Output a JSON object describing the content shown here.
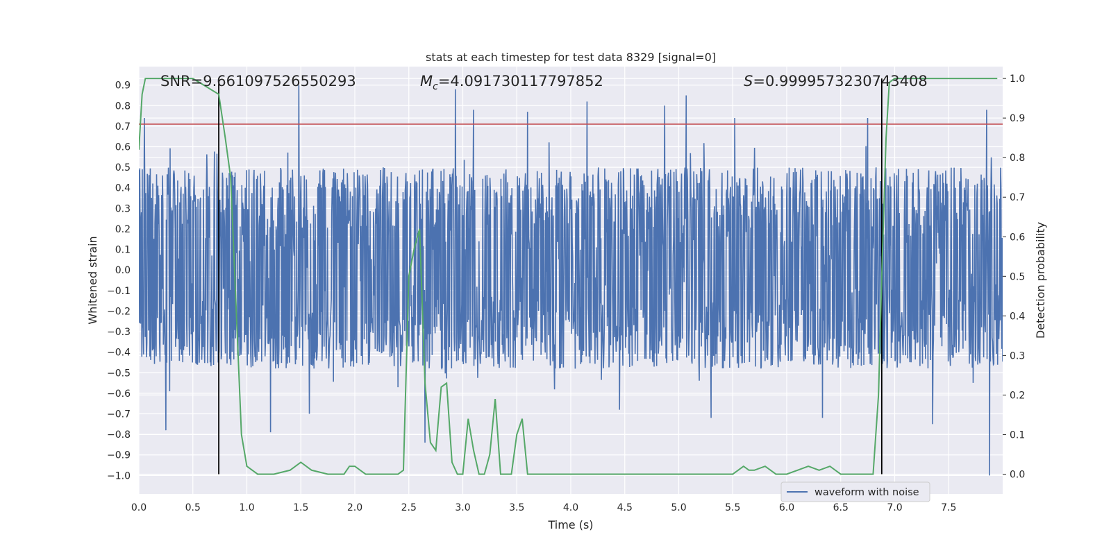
{
  "chart_data": {
    "type": "line",
    "title": "stats at each timestep for test data 8329 [signal=0]",
    "xlabel": "Time (s)",
    "ylabel_left": "Whitened strain",
    "ylabel_right": "Detection probability",
    "xlim": [
      0,
      8.0
    ],
    "ylim_left": [
      -1.09,
      0.99
    ],
    "ylim_right": [
      -0.05,
      1.03
    ],
    "x_ticks": [
      0.0,
      0.5,
      1.0,
      1.5,
      2.0,
      2.5,
      3.0,
      3.5,
      4.0,
      4.5,
      5.0,
      5.5,
      6.0,
      6.5,
      7.0,
      7.5
    ],
    "x_tick_labels": [
      "0.0",
      "0.5",
      "1.0",
      "1.5",
      "2.0",
      "2.5",
      "3.0",
      "3.5",
      "4.0",
      "4.5",
      "5.0",
      "5.5",
      "6.0",
      "6.5",
      "7.0",
      "7.5"
    ],
    "y_left_ticks": [
      0.9,
      0.8,
      0.7,
      0.6,
      0.5,
      0.4,
      0.3,
      0.2,
      0.1,
      0.0,
      -0.1,
      -0.2,
      -0.3,
      -0.4,
      -0.5,
      -0.6,
      -0.7,
      -0.8,
      -0.9,
      -1.0
    ],
    "y_left_tick_labels": [
      "0.9",
      "0.8",
      "0.7",
      "0.6",
      "0.5",
      "0.4",
      "0.3",
      "0.2",
      "0.1",
      "0.0",
      "−0.1",
      "−0.2",
      "−0.3",
      "−0.4",
      "−0.5",
      "−0.6",
      "−0.7",
      "−0.8",
      "−0.9",
      "−1.0"
    ],
    "y_right_ticks": [
      1.0,
      0.9,
      0.8,
      0.7,
      0.6,
      0.5,
      0.4,
      0.3,
      0.2,
      0.1,
      0.0
    ],
    "y_right_tick_labels": [
      "1.0",
      "0.9",
      "0.8",
      "0.7",
      "0.6",
      "0.5",
      "0.4",
      "0.3",
      "0.2",
      "0.1",
      "0.0"
    ],
    "grid": true,
    "annotations": {
      "snr": "SNR=9.661097526550293",
      "mc_symbol": "M",
      "mc_sub": "c",
      "mc_value": "=4.091730117797852",
      "s_symbol": "S",
      "s_value": "=0.9999573230743408"
    },
    "legend": {
      "placement": "lower-right",
      "entries": [
        "waveform with noise"
      ]
    },
    "threshold_line": {
      "y_left": 0.71,
      "color": "#c44e52"
    },
    "vertical_lines": [
      0.74,
      6.88
    ],
    "waveform": {
      "name": "waveform with noise",
      "color": "#4c72b0",
      "t_start": 0.0,
      "t_end": 8.0,
      "samples": 2048,
      "envelope_upper": 0.5,
      "envelope_lower": -0.48,
      "peaks": [
        {
          "t": 0.05,
          "v": 0.74
        },
        {
          "t": 1.48,
          "v": 0.9
        },
        {
          "t": 2.93,
          "v": 0.88
        },
        {
          "t": 3.1,
          "v": 0.78
        },
        {
          "t": 3.6,
          "v": 0.77
        },
        {
          "t": 4.15,
          "v": 0.82
        },
        {
          "t": 4.87,
          "v": 0.8
        },
        {
          "t": 5.07,
          "v": 0.85
        },
        {
          "t": 5.52,
          "v": 0.74
        },
        {
          "t": 6.75,
          "v": 0.74
        },
        {
          "t": 7.85,
          "v": 0.78
        },
        {
          "t": 0.25,
          "v": -0.78
        },
        {
          "t": 1.22,
          "v": -0.79
        },
        {
          "t": 1.58,
          "v": -0.7
        },
        {
          "t": 2.65,
          "v": -0.84
        },
        {
          "t": 4.45,
          "v": -0.68
        },
        {
          "t": 5.3,
          "v": -0.72
        },
        {
          "t": 6.33,
          "v": -0.72
        },
        {
          "t": 7.35,
          "v": -0.75
        },
        {
          "t": 7.88,
          "v": -1.0
        }
      ]
    },
    "probability": {
      "color": "#55a868",
      "x": [
        0.0,
        0.03,
        0.06,
        0.12,
        0.5,
        0.62,
        0.68,
        0.74,
        0.8,
        0.85,
        0.95,
        1.0,
        1.1,
        1.25,
        1.4,
        1.45,
        1.5,
        1.6,
        1.75,
        1.85,
        1.9,
        1.95,
        2.0,
        2.05,
        2.1,
        2.15,
        2.2,
        2.3,
        2.4,
        2.45,
        2.5,
        2.55,
        2.6,
        2.65,
        2.7,
        2.75,
        2.8,
        2.85,
        2.9,
        2.95,
        3.0,
        3.05,
        3.1,
        3.15,
        3.2,
        3.25,
        3.3,
        3.35,
        3.4,
        3.45,
        3.5,
        3.55,
        3.6,
        3.65,
        3.7,
        3.8,
        3.9,
        4.0,
        4.2,
        4.4,
        4.6,
        4.8,
        5.0,
        5.3,
        5.5,
        5.55,
        5.6,
        5.65,
        5.7,
        5.8,
        5.9,
        6.0,
        6.1,
        6.2,
        6.3,
        6.4,
        6.5,
        6.6,
        6.7,
        6.8,
        6.85,
        6.88,
        6.92,
        6.95,
        7.0,
        7.5,
        7.95
      ],
      "y": [
        0.82,
        0.96,
        1.0,
        1.0,
        1.0,
        0.98,
        0.97,
        0.96,
        0.85,
        0.75,
        0.1,
        0.02,
        0.0,
        0.0,
        0.01,
        0.02,
        0.03,
        0.01,
        0.0,
        0.0,
        0.0,
        0.02,
        0.02,
        0.01,
        0.0,
        0.0,
        0.0,
        0.0,
        0.0,
        0.01,
        0.5,
        0.57,
        0.62,
        0.23,
        0.08,
        0.06,
        0.22,
        0.23,
        0.03,
        0.0,
        0.0,
        0.14,
        0.06,
        0.0,
        0.0,
        0.05,
        0.19,
        0.0,
        0.0,
        0.0,
        0.1,
        0.14,
        0.0,
        0.0,
        0.0,
        0.0,
        0.0,
        0.0,
        0.0,
        0.0,
        0.0,
        0.0,
        0.0,
        0.0,
        0.0,
        0.01,
        0.02,
        0.01,
        0.01,
        0.02,
        0.0,
        0.0,
        0.01,
        0.02,
        0.01,
        0.02,
        0.0,
        0.0,
        0.0,
        0.0,
        0.2,
        0.5,
        0.85,
        0.99,
        1.0,
        1.0,
        1.0
      ]
    }
  }
}
